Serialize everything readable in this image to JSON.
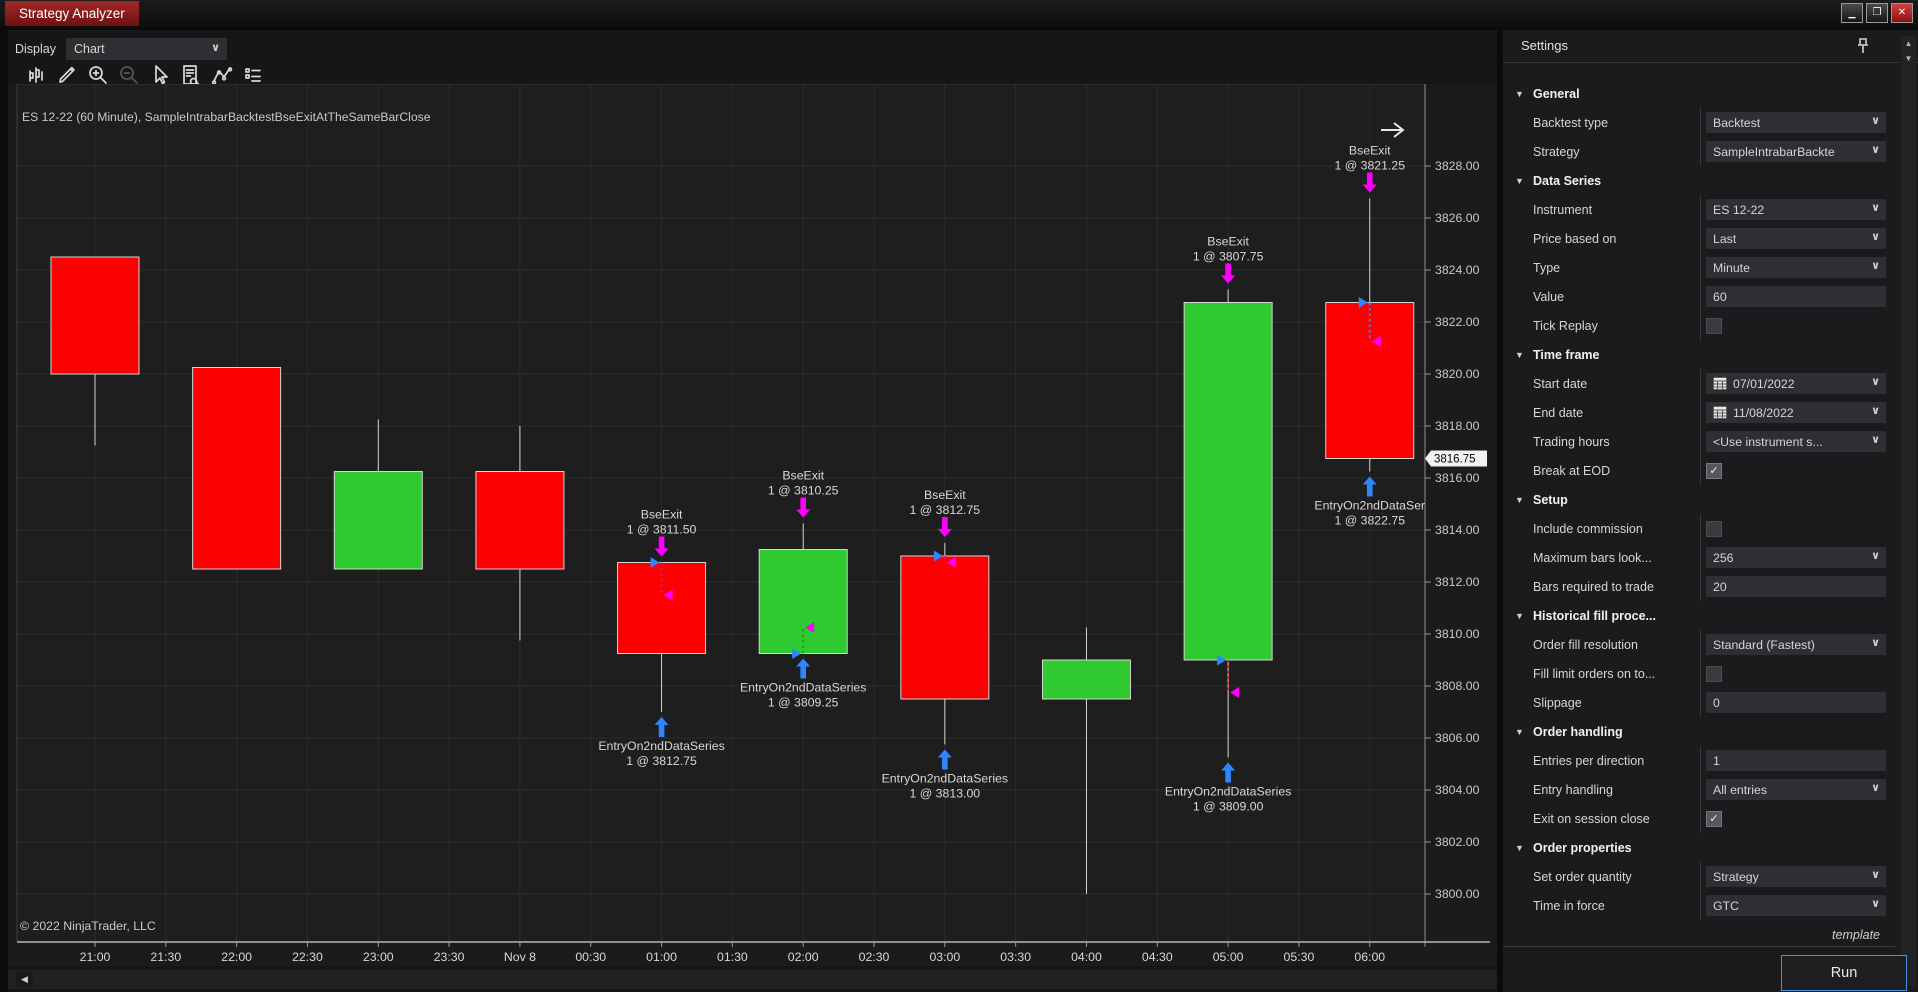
{
  "titlebar": {
    "title": "Strategy Analyzer",
    "window_buttons": [
      {
        "name": "minimize",
        "glyph": "—"
      },
      {
        "name": "restore",
        "glyph": "❐"
      },
      {
        "name": "close",
        "glyph": "✕"
      }
    ]
  },
  "chart_panel": {
    "display_label": "Display",
    "display_value": "Chart",
    "toolbar_icons": [
      {
        "name": "chart-style-icon",
        "disabled": false
      },
      {
        "name": "pencil-draw-icon",
        "disabled": false
      },
      {
        "name": "zoom-in-icon",
        "disabled": false
      },
      {
        "name": "zoom-out-icon",
        "disabled": true
      },
      {
        "name": "cursor-icon",
        "disabled": false
      },
      {
        "name": "data-box-icon",
        "disabled": false
      },
      {
        "name": "polyline-icon",
        "disabled": false
      },
      {
        "name": "list-icon",
        "disabled": false
      }
    ],
    "copyright": "© 2022 NinjaTrader, LLC",
    "last_price": "3816.75"
  },
  "chart_data": {
    "type": "candlestick",
    "title": "ES 12-22 (60 Minute), SampleIntrabarBacktestBseExitAtTheSameBarClose",
    "x_labels": [
      "21:00",
      "21:30",
      "22:00",
      "22:30",
      "23:00",
      "23:30",
      "Nov 8",
      "00:30",
      "01:00",
      "01:30",
      "02:00",
      "02:30",
      "03:00",
      "03:30",
      "04:00",
      "04:30",
      "05:00",
      "05:30",
      "06:00"
    ],
    "y_ticks": [
      "3828.00",
      "3826.00",
      "3824.00",
      "3822.00",
      "3820.00",
      "3818.00",
      "3816.00",
      "3814.00",
      "3812.00",
      "3810.00",
      "3808.00",
      "3806.00",
      "3804.00",
      "3802.00",
      "3800.00"
    ],
    "ylim": [
      3799.0,
      3831.0
    ],
    "grid": true,
    "colors": {
      "up": "#2fca2f",
      "down": "#fb0000",
      "outline": "#d4d4d4",
      "exit_marker": "#ff00ff",
      "entry_marker": "#2e86ff"
    },
    "bars": [
      {
        "time": "21:00",
        "o": 3824.5,
        "h": 3824.5,
        "l": 3817.25,
        "c": 3820.0
      },
      {
        "time": "22:00",
        "o": 3820.25,
        "h": 3820.25,
        "l": 3812.5,
        "c": 3812.5
      },
      {
        "time": "23:00",
        "o": 3812.5,
        "h": 3818.25,
        "l": 3812.5,
        "c": 3816.25
      },
      {
        "time": "Nov 8",
        "o": 3816.25,
        "h": 3818.0,
        "l": 3809.75,
        "c": 3812.5
      },
      {
        "time": "01:00",
        "o": 3812.75,
        "h": 3812.75,
        "l": 3807.0,
        "c": 3809.25
      },
      {
        "time": "02:00",
        "o": 3809.25,
        "h": 3814.25,
        "l": 3809.25,
        "c": 3813.25
      },
      {
        "time": "03:00",
        "o": 3813.0,
        "h": 3813.5,
        "l": 3805.75,
        "c": 3807.5
      },
      {
        "time": "04:00",
        "o": 3807.5,
        "h": 3810.25,
        "l": 3800.0,
        "c": 3809.0
      },
      {
        "time": "05:00",
        "o": 3809.0,
        "h": 3823.25,
        "l": 3805.25,
        "c": 3822.75
      },
      {
        "time": "06:00",
        "o": 3822.75,
        "h": 3826.75,
        "l": 3816.25,
        "c": 3816.75
      }
    ],
    "trades": [
      {
        "bar": 4,
        "time": "01:00",
        "exit_price": 3811.5,
        "exit_lines": [
          "BseExit",
          "1 @ 3811.50"
        ],
        "entry_price": 3812.75,
        "entry_lines": [
          "EntryOn2ndDataSeries",
          "1 @ 3812.75"
        ],
        "result": "loss",
        "connector": "#cc2266"
      },
      {
        "bar": 5,
        "time": "02:00",
        "exit_price": 3810.25,
        "exit_lines": [
          "BseExit",
          "1 @ 3810.25"
        ],
        "entry_price": 3809.25,
        "entry_lines": [
          "EntryOn2ndDataSeries",
          "1 @ 3809.25"
        ],
        "result": "win",
        "connector": "#1d9e1d"
      },
      {
        "bar": 6,
        "time": "03:00",
        "exit_price": 3812.75,
        "exit_lines": [
          "BseExit",
          "1 @ 3812.75"
        ],
        "entry_price": 3813.0,
        "entry_lines": [
          "EntryOn2ndDataSeries",
          "1 @ 3813.00"
        ],
        "result": "loss",
        "connector": "#cc2266"
      },
      {
        "bar": 8,
        "time": "05:00",
        "exit_price": 3807.75,
        "exit_lines": [
          "BseExit",
          "1 @ 3807.75"
        ],
        "entry_price": 3809.0,
        "entry_lines": [
          "EntryOn2ndDataSeries",
          "1 @ 3809.00"
        ],
        "result": "loss",
        "connector": "#d31f1f"
      },
      {
        "bar": 9,
        "time": "06:00",
        "exit_price": 3821.25,
        "exit_lines": [
          "BseExit",
          "1 @ 3821.25"
        ],
        "entry_price": 3822.75,
        "entry_lines": [
          "EntryOn2ndDataSer",
          "1 @ 3822.75"
        ],
        "result": "loss",
        "connector": "#4d7fe0"
      }
    ],
    "last_price": 3816.75,
    "legend_position": "none"
  },
  "settings": {
    "header": "Settings",
    "rows": [
      {
        "type": "section",
        "label": "General"
      },
      {
        "type": "dropdown",
        "label": "Backtest type",
        "value": "Backtest"
      },
      {
        "type": "dropdown",
        "label": "Strategy",
        "value": "SampleIntrabarBackte"
      },
      {
        "type": "section",
        "label": "Data Series"
      },
      {
        "type": "dropdown",
        "label": "Instrument",
        "value": "ES 12-22"
      },
      {
        "type": "dropdown",
        "label": "Price based on",
        "value": "Last"
      },
      {
        "type": "dropdown",
        "label": "Type",
        "value": "Minute"
      },
      {
        "type": "input",
        "label": "Value",
        "value": "60"
      },
      {
        "type": "checkbox",
        "label": "Tick Replay",
        "checked": false
      },
      {
        "type": "section",
        "label": "Time frame"
      },
      {
        "type": "date",
        "label": "Start date",
        "value": "07/01/2022"
      },
      {
        "type": "date",
        "label": "End date",
        "value": "11/08/2022"
      },
      {
        "type": "dropdown",
        "label": "Trading hours",
        "value": "<Use instrument s..."
      },
      {
        "type": "checkbox",
        "label": "Break at EOD",
        "checked": true
      },
      {
        "type": "section",
        "label": "Setup"
      },
      {
        "type": "checkbox",
        "label": "Include commission",
        "checked": false
      },
      {
        "type": "dropdown",
        "label": "Maximum bars look...",
        "value": "256"
      },
      {
        "type": "input",
        "label": "Bars required to trade",
        "value": "20"
      },
      {
        "type": "section",
        "label": "Historical fill proce..."
      },
      {
        "type": "dropdown",
        "label": "Order fill resolution",
        "value": "Standard (Fastest)"
      },
      {
        "type": "checkbox",
        "label": "Fill limit orders on to...",
        "checked": false
      },
      {
        "type": "input",
        "label": "Slippage",
        "value": "0"
      },
      {
        "type": "section",
        "label": "Order handling"
      },
      {
        "type": "input",
        "label": "Entries per direction",
        "value": "1"
      },
      {
        "type": "dropdown",
        "label": "Entry handling",
        "value": "All entries"
      },
      {
        "type": "checkbox",
        "label": "Exit on session close",
        "checked": true
      },
      {
        "type": "section",
        "label": "Order properties"
      },
      {
        "type": "dropdown",
        "label": "Set order quantity",
        "value": "Strategy"
      },
      {
        "type": "dropdown",
        "label": "Time in force",
        "value": "GTC"
      }
    ],
    "template_link": "template",
    "run_button": "Run"
  }
}
